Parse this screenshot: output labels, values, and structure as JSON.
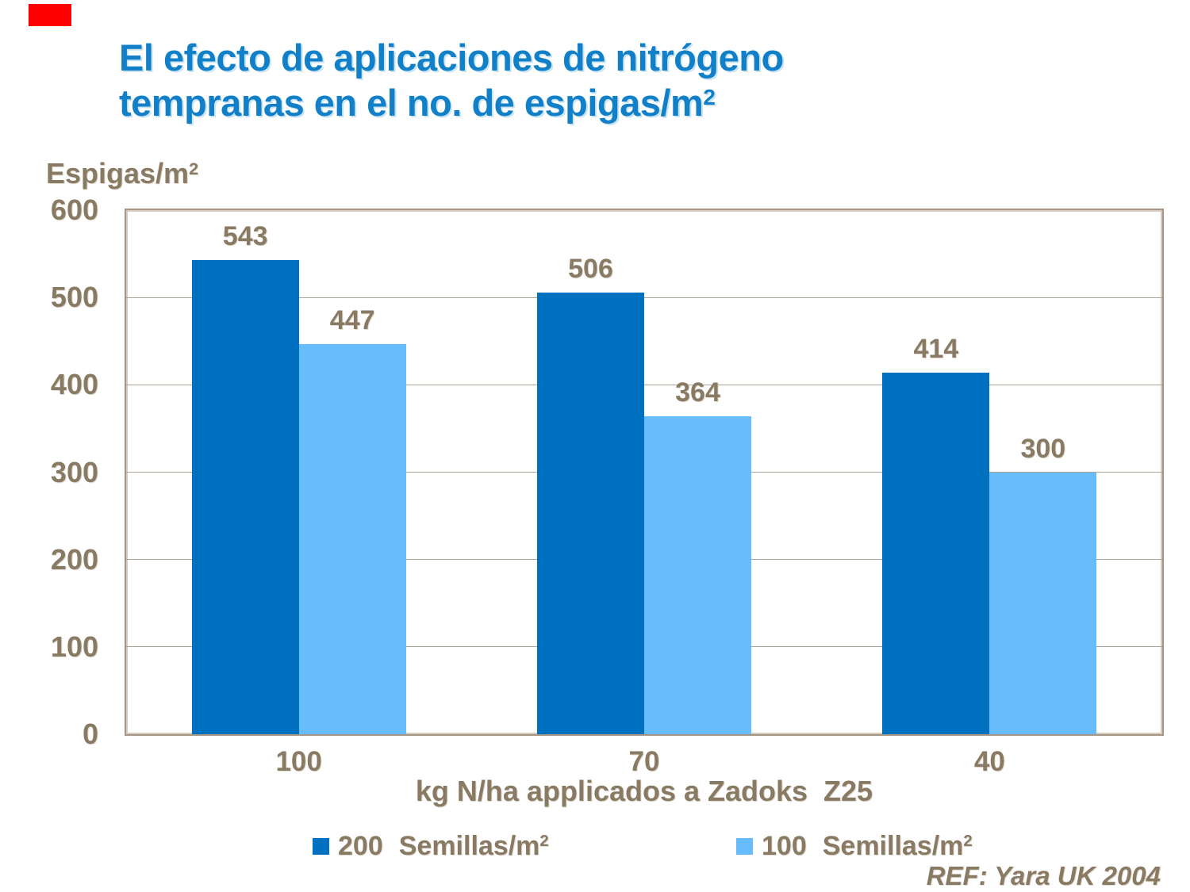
{
  "slide": {
    "title": {
      "line1": "El efecto de aplicaciones de nitrógeno",
      "line2_base": "tempranas en el no. de espigas/m",
      "line2_sup": "2"
    },
    "accent_bar_color": "#FF0000",
    "ref_note": "REF: Yara UK 2004"
  },
  "chart_data": {
    "type": "bar",
    "title": "El efecto de aplicaciones de nitrógeno tempranas en el no. de espigas/m2",
    "ylabel": {
      "base": "Espigas/m",
      "sup": "2"
    },
    "xlabel": "kg N/ha applicados a Zadoks  Z25",
    "categories": [
      "100",
      "70",
      "40"
    ],
    "series": [
      {
        "name": "200 Semillas/m2",
        "legend_value": "200",
        "legend_unit_base": "Semillas/m",
        "legend_unit_sup": "2",
        "color": "#0071C0",
        "values": [
          543,
          506,
          414
        ]
      },
      {
        "name": "100 Semillas/m2",
        "legend_value": "100",
        "legend_unit_base": "Semillas/m",
        "legend_unit_sup": "2",
        "color": "#67BDFB",
        "values": [
          447,
          364,
          300
        ]
      }
    ],
    "ylim": [
      0,
      600
    ],
    "yticks": [
      0,
      100,
      200,
      300,
      400,
      500,
      600
    ],
    "grid": true,
    "gridline_color": "#ADA499",
    "plot_border_color": "#A59585",
    "axis_text_color": "#897A64",
    "legend_position": "bottom"
  }
}
